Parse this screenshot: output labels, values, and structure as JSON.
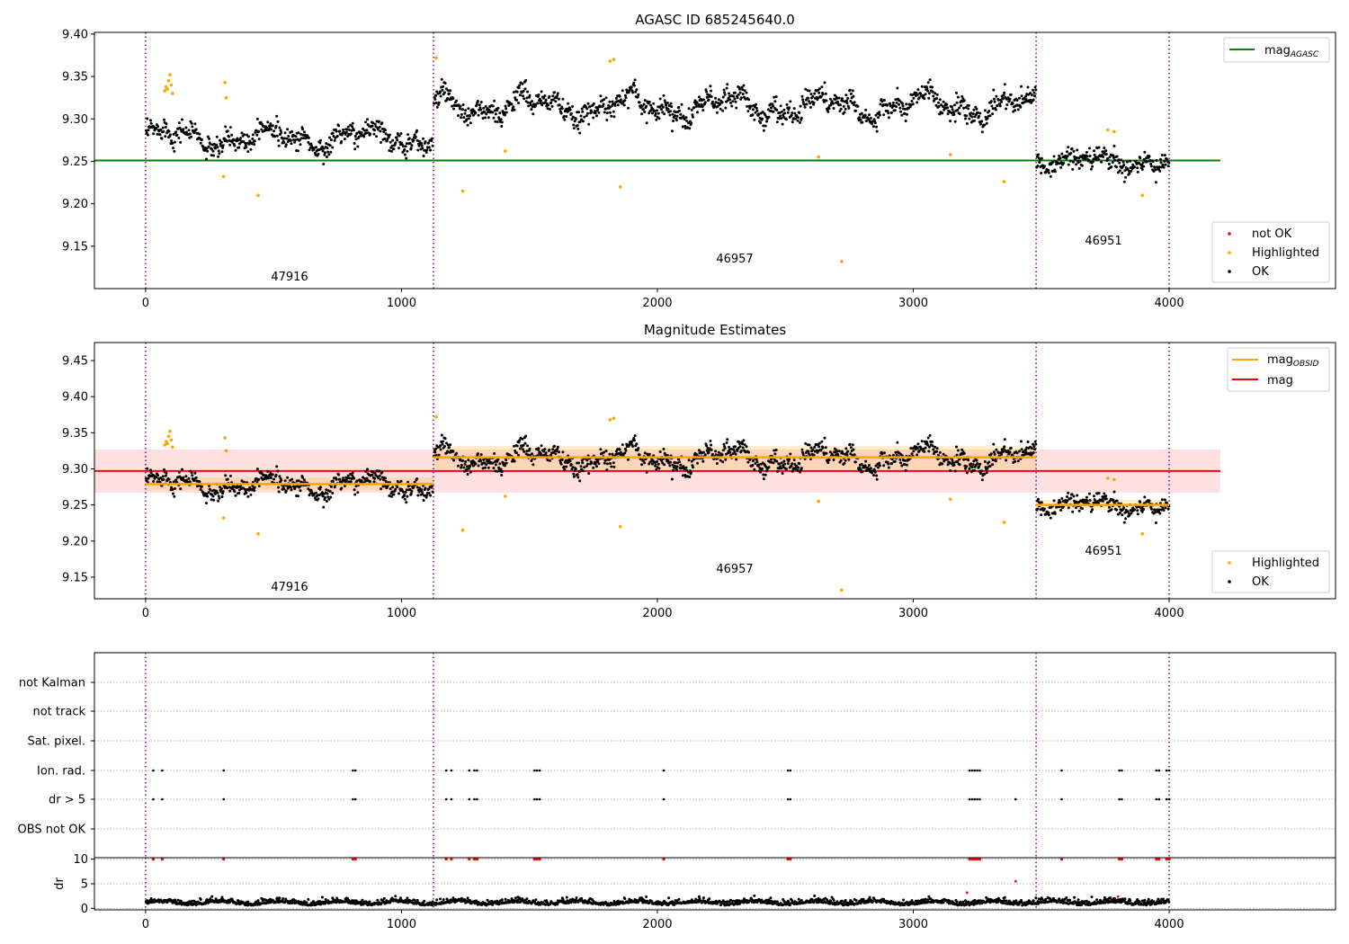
{
  "chart_data": [
    {
      "type": "scatter",
      "title": "AGASC ID 685245640.0",
      "xlabel": "",
      "ylabel": "",
      "xlim": [
        -200,
        4650
      ],
      "ylim": [
        9.1,
        9.402
      ],
      "xticks": [
        "0",
        "1000",
        "2000",
        "3000",
        "4000"
      ],
      "xtick_values": [
        0,
        1000,
        2000,
        3000,
        4000
      ],
      "yticks": [
        "9.15",
        "9.20",
        "9.25",
        "9.30",
        "9.35",
        "9.40"
      ],
      "ytick_values": [
        9.15,
        9.2,
        9.25,
        9.3,
        9.35,
        9.4
      ],
      "obsid_boundaries": [
        0,
        1125,
        3480,
        4000
      ],
      "obsid_labels": [
        {
          "text": "47916",
          "x": 560,
          "y": 9.115
        },
        {
          "text": "46957",
          "x": 2300,
          "y": 9.136
        },
        {
          "text": "46951",
          "x": 3740,
          "y": 9.158
        }
      ],
      "reference_line": {
        "name": "mag",
        "subscript": "AGASC",
        "y": 9.251,
        "x": [
          -200,
          4200
        ],
        "color": "#008000"
      },
      "legend_upper": [
        {
          "label": "mag",
          "subscript": "AGASC",
          "color": "#008000",
          "kind": "line"
        }
      ],
      "legend_lower": [
        {
          "label": "not OK",
          "color": "#ff0000",
          "kind": "point"
        },
        {
          "label": "Highlighted",
          "color": "#ffa500",
          "kind": "point"
        },
        {
          "label": "OK",
          "color": "#000000",
          "kind": "point"
        }
      ],
      "segments": [
        {
          "obsid": "47916",
          "x": [
            0,
            1125
          ],
          "mean": 9.278,
          "spread": 0.018
        },
        {
          "obsid": "46957",
          "x": [
            1125,
            3480
          ],
          "mean": 9.315,
          "spread": 0.02
        },
        {
          "obsid": "46951",
          "x": [
            3480,
            4000
          ],
          "mean": 9.25,
          "spread": 0.011
        }
      ],
      "highlighted_points": [
        {
          "x": 75,
          "y": 9.333
        },
        {
          "x": 80,
          "y": 9.338
        },
        {
          "x": 85,
          "y": 9.335
        },
        {
          "x": 90,
          "y": 9.345
        },
        {
          "x": 95,
          "y": 9.352
        },
        {
          "x": 100,
          "y": 9.34
        },
        {
          "x": 105,
          "y": 9.33
        },
        {
          "x": 305,
          "y": 9.232
        },
        {
          "x": 310,
          "y": 9.343
        },
        {
          "x": 315,
          "y": 9.325
        },
        {
          "x": 440,
          "y": 9.21
        },
        {
          "x": 1135,
          "y": 9.372
        },
        {
          "x": 1240,
          "y": 9.215
        },
        {
          "x": 1405,
          "y": 9.262
        },
        {
          "x": 1815,
          "y": 9.368
        },
        {
          "x": 1830,
          "y": 9.37
        },
        {
          "x": 1855,
          "y": 9.22
        },
        {
          "x": 2630,
          "y": 9.255
        },
        {
          "x": 2720,
          "y": 9.132
        },
        {
          "x": 3145,
          "y": 9.258
        },
        {
          "x": 3355,
          "y": 9.226
        },
        {
          "x": 3760,
          "y": 9.287
        },
        {
          "x": 3785,
          "y": 9.285
        },
        {
          "x": 3895,
          "y": 9.21
        }
      ]
    },
    {
      "type": "scatter",
      "title": "Magnitude Estimates",
      "xlabel": "",
      "ylabel": "",
      "xlim": [
        -200,
        4650
      ],
      "ylim": [
        9.12,
        9.475
      ],
      "xticks": [
        "0",
        "1000",
        "2000",
        "3000",
        "4000"
      ],
      "xtick_values": [
        0,
        1000,
        2000,
        3000,
        4000
      ],
      "yticks": [
        "9.15",
        "9.20",
        "9.25",
        "9.30",
        "9.35",
        "9.40",
        "9.45"
      ],
      "ytick_values": [
        9.15,
        9.2,
        9.25,
        9.3,
        9.35,
        9.4,
        9.45
      ],
      "obsid_boundaries": [
        0,
        1125,
        3480,
        4000
      ],
      "obsid_labels": [
        {
          "text": "47916",
          "x": 560,
          "y": 9.132
        },
        {
          "text": "46957",
          "x": 2300,
          "y": 9.16
        },
        {
          "text": "46951",
          "x": 3740,
          "y": 9.184
        }
      ],
      "mag_line": {
        "name": "mag",
        "y": 9.297,
        "band": [
          9.267,
          9.327
        ],
        "x": [
          -200,
          4200
        ],
        "color": "#ff0000"
      },
      "obsid_mags": [
        {
          "x": [
            0,
            1125
          ],
          "y": 9.279,
          "band": [
            9.27,
            9.288
          ]
        },
        {
          "x": [
            1125,
            3480
          ],
          "y": 9.316,
          "band": [
            9.3,
            9.332
          ]
        },
        {
          "x": [
            3480,
            4000
          ],
          "y": 9.25,
          "band": [
            9.243,
            9.257
          ]
        }
      ],
      "legend_upper": [
        {
          "label": "mag",
          "subscript": "OBSID",
          "color": "#ffa500",
          "kind": "line"
        },
        {
          "label": "mag",
          "subscript": "",
          "color": "#ff0000",
          "kind": "line"
        }
      ],
      "legend_lower": [
        {
          "label": "Highlighted",
          "color": "#ffa500",
          "kind": "point"
        },
        {
          "label": "OK",
          "color": "#000000",
          "kind": "point"
        }
      ]
    },
    {
      "type": "scatter",
      "title": "",
      "xlabel": "",
      "ylabel": "",
      "xlim": [
        -200,
        4650
      ],
      "flag_rows": [
        "not Kalman",
        "not track",
        "Sat. pixel.",
        "Ion. rad.",
        "dr > 5",
        "OBS not OK"
      ],
      "flag_events": [
        30,
        65,
        305,
        810,
        820,
        1175,
        1195,
        1265,
        1285,
        1295,
        1520,
        1530,
        1540,
        2025,
        2510,
        2520,
        3220,
        3230,
        3240,
        3250,
        3260,
        3580,
        3805,
        3815,
        3950,
        3960,
        3990,
        4000
      ],
      "obsid_boundaries": [
        0,
        1125,
        3480,
        4000
      ]
    },
    {
      "type": "scatter",
      "title": "",
      "xlabel": "",
      "ylabel": "dr",
      "xlim": [
        -200,
        4650
      ],
      "ylim": [
        -0.3,
        10.3
      ],
      "yticks": [
        "0",
        "5",
        "10"
      ],
      "ytick_values": [
        0,
        5,
        10
      ],
      "xticks": [
        "0",
        "1000",
        "2000",
        "3000",
        "4000"
      ],
      "xtick_values": [
        0,
        1000,
        2000,
        3000,
        4000
      ],
      "obsid_boundaries": [
        0,
        1125,
        3480,
        4000
      ],
      "clipped_value": 10,
      "outliers": [
        {
          "x": 3210,
          "y": 3.2
        },
        {
          "x": 3400,
          "y": 5.5
        },
        {
          "x": 3800,
          "y": 2.4
        }
      ]
    }
  ]
}
